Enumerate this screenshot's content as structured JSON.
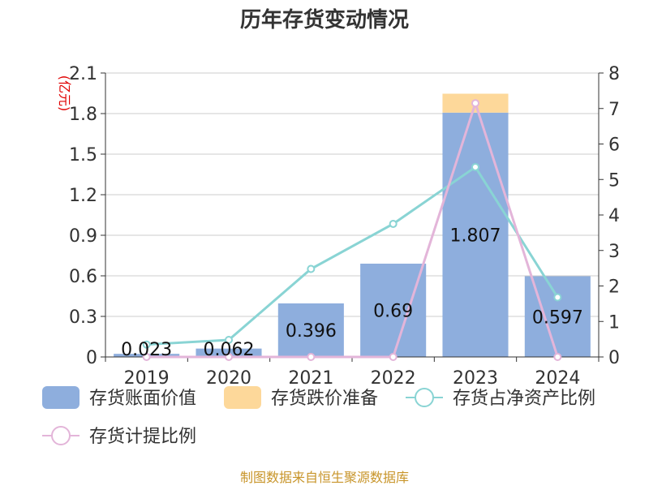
{
  "chart_data": {
    "type": "bar",
    "title": "历年存货变动情况",
    "unit_label": "(亿元)",
    "categories": [
      "2019",
      "2020",
      "2021",
      "2022",
      "2023",
      "2024"
    ],
    "y_left": {
      "min": 0,
      "max": 2.1,
      "ticks": [
        "0",
        "0.3",
        "0.6",
        "0.9",
        "1.2",
        "1.5",
        "1.8",
        "2.1"
      ]
    },
    "y_right": {
      "min": 0,
      "max": 8,
      "ticks": [
        "0",
        "1",
        "2",
        "3",
        "4",
        "5",
        "6",
        "7",
        "8"
      ]
    },
    "series": [
      {
        "name": "存货账面价值",
        "type": "bar",
        "axis": "left",
        "color": "#8eaedd",
        "values": [
          0.023,
          0.062,
          0.396,
          0.69,
          1.807,
          0.597
        ],
        "labels": [
          "0.023",
          "0.062",
          "0.396",
          "0.69",
          "1.807",
          "0.597"
        ]
      },
      {
        "name": "存货跌价准备",
        "type": "bar",
        "axis": "left",
        "stacked": true,
        "color": "#fdd89a",
        "values": [
          0,
          0,
          0,
          0,
          0.14,
          0
        ]
      },
      {
        "name": "存货占净资产比例",
        "type": "line",
        "axis": "right",
        "color": "#89d4d4",
        "values": [
          0.35,
          0.48,
          2.48,
          3.75,
          5.35,
          1.68
        ]
      },
      {
        "name": "存货计提比例",
        "type": "line",
        "axis": "right",
        "color": "#e3b5d9",
        "values": [
          0,
          0,
          0,
          0,
          7.15,
          0
        ]
      }
    ],
    "grid": true,
    "legend_position": "bottom"
  },
  "footer": {
    "source": "制图数据来自恒生聚源数据库"
  }
}
